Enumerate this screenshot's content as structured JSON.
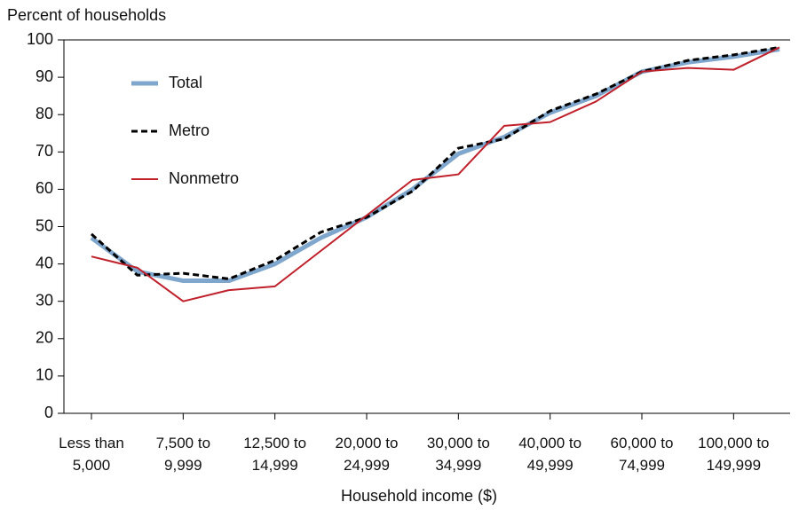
{
  "chart_data": {
    "type": "line",
    "y_label": "Percent of households",
    "x_label": "Household income ($)",
    "categories": [
      "Less than\n5,000",
      null,
      "7,500 to\n9,999",
      null,
      "12,500 to\n14,999",
      null,
      "20,000 to\n24,999",
      null,
      "30,000 to\n34,999",
      null,
      "40,000 to\n49,999",
      null,
      "60,000 to\n74,999",
      null,
      "100,000 to\n149,999",
      null
    ],
    "series": [
      {
        "name": "Total",
        "color": "#7fa6cc",
        "style": "solid",
        "width": 5,
        "values": [
          47,
          38,
          35.5,
          35.5,
          40,
          47,
          52.5,
          60,
          69.5,
          74,
          80.5,
          85,
          91.5,
          94,
          95.5,
          97.5
        ]
      },
      {
        "name": "Metro",
        "color": "#000000",
        "style": "dashed",
        "width": 3,
        "values": [
          48,
          37,
          37.5,
          36,
          41,
          48.5,
          52.5,
          59.5,
          71,
          73.5,
          81,
          85.5,
          91.5,
          94.5,
          96,
          98
        ]
      },
      {
        "name": "Nonmetro",
        "color": "#c0202a",
        "style": "solid",
        "width": 2,
        "values": [
          42,
          39,
          30,
          33,
          34,
          43.5,
          53,
          62.5,
          64,
          77,
          78,
          83.5,
          91.5,
          92.5,
          92,
          98
        ]
      }
    ],
    "ylim": [
      0,
      100
    ],
    "yticks": [
      0,
      10,
      20,
      30,
      40,
      50,
      60,
      70,
      80,
      90,
      100
    ],
    "legend": "upper-left"
  }
}
